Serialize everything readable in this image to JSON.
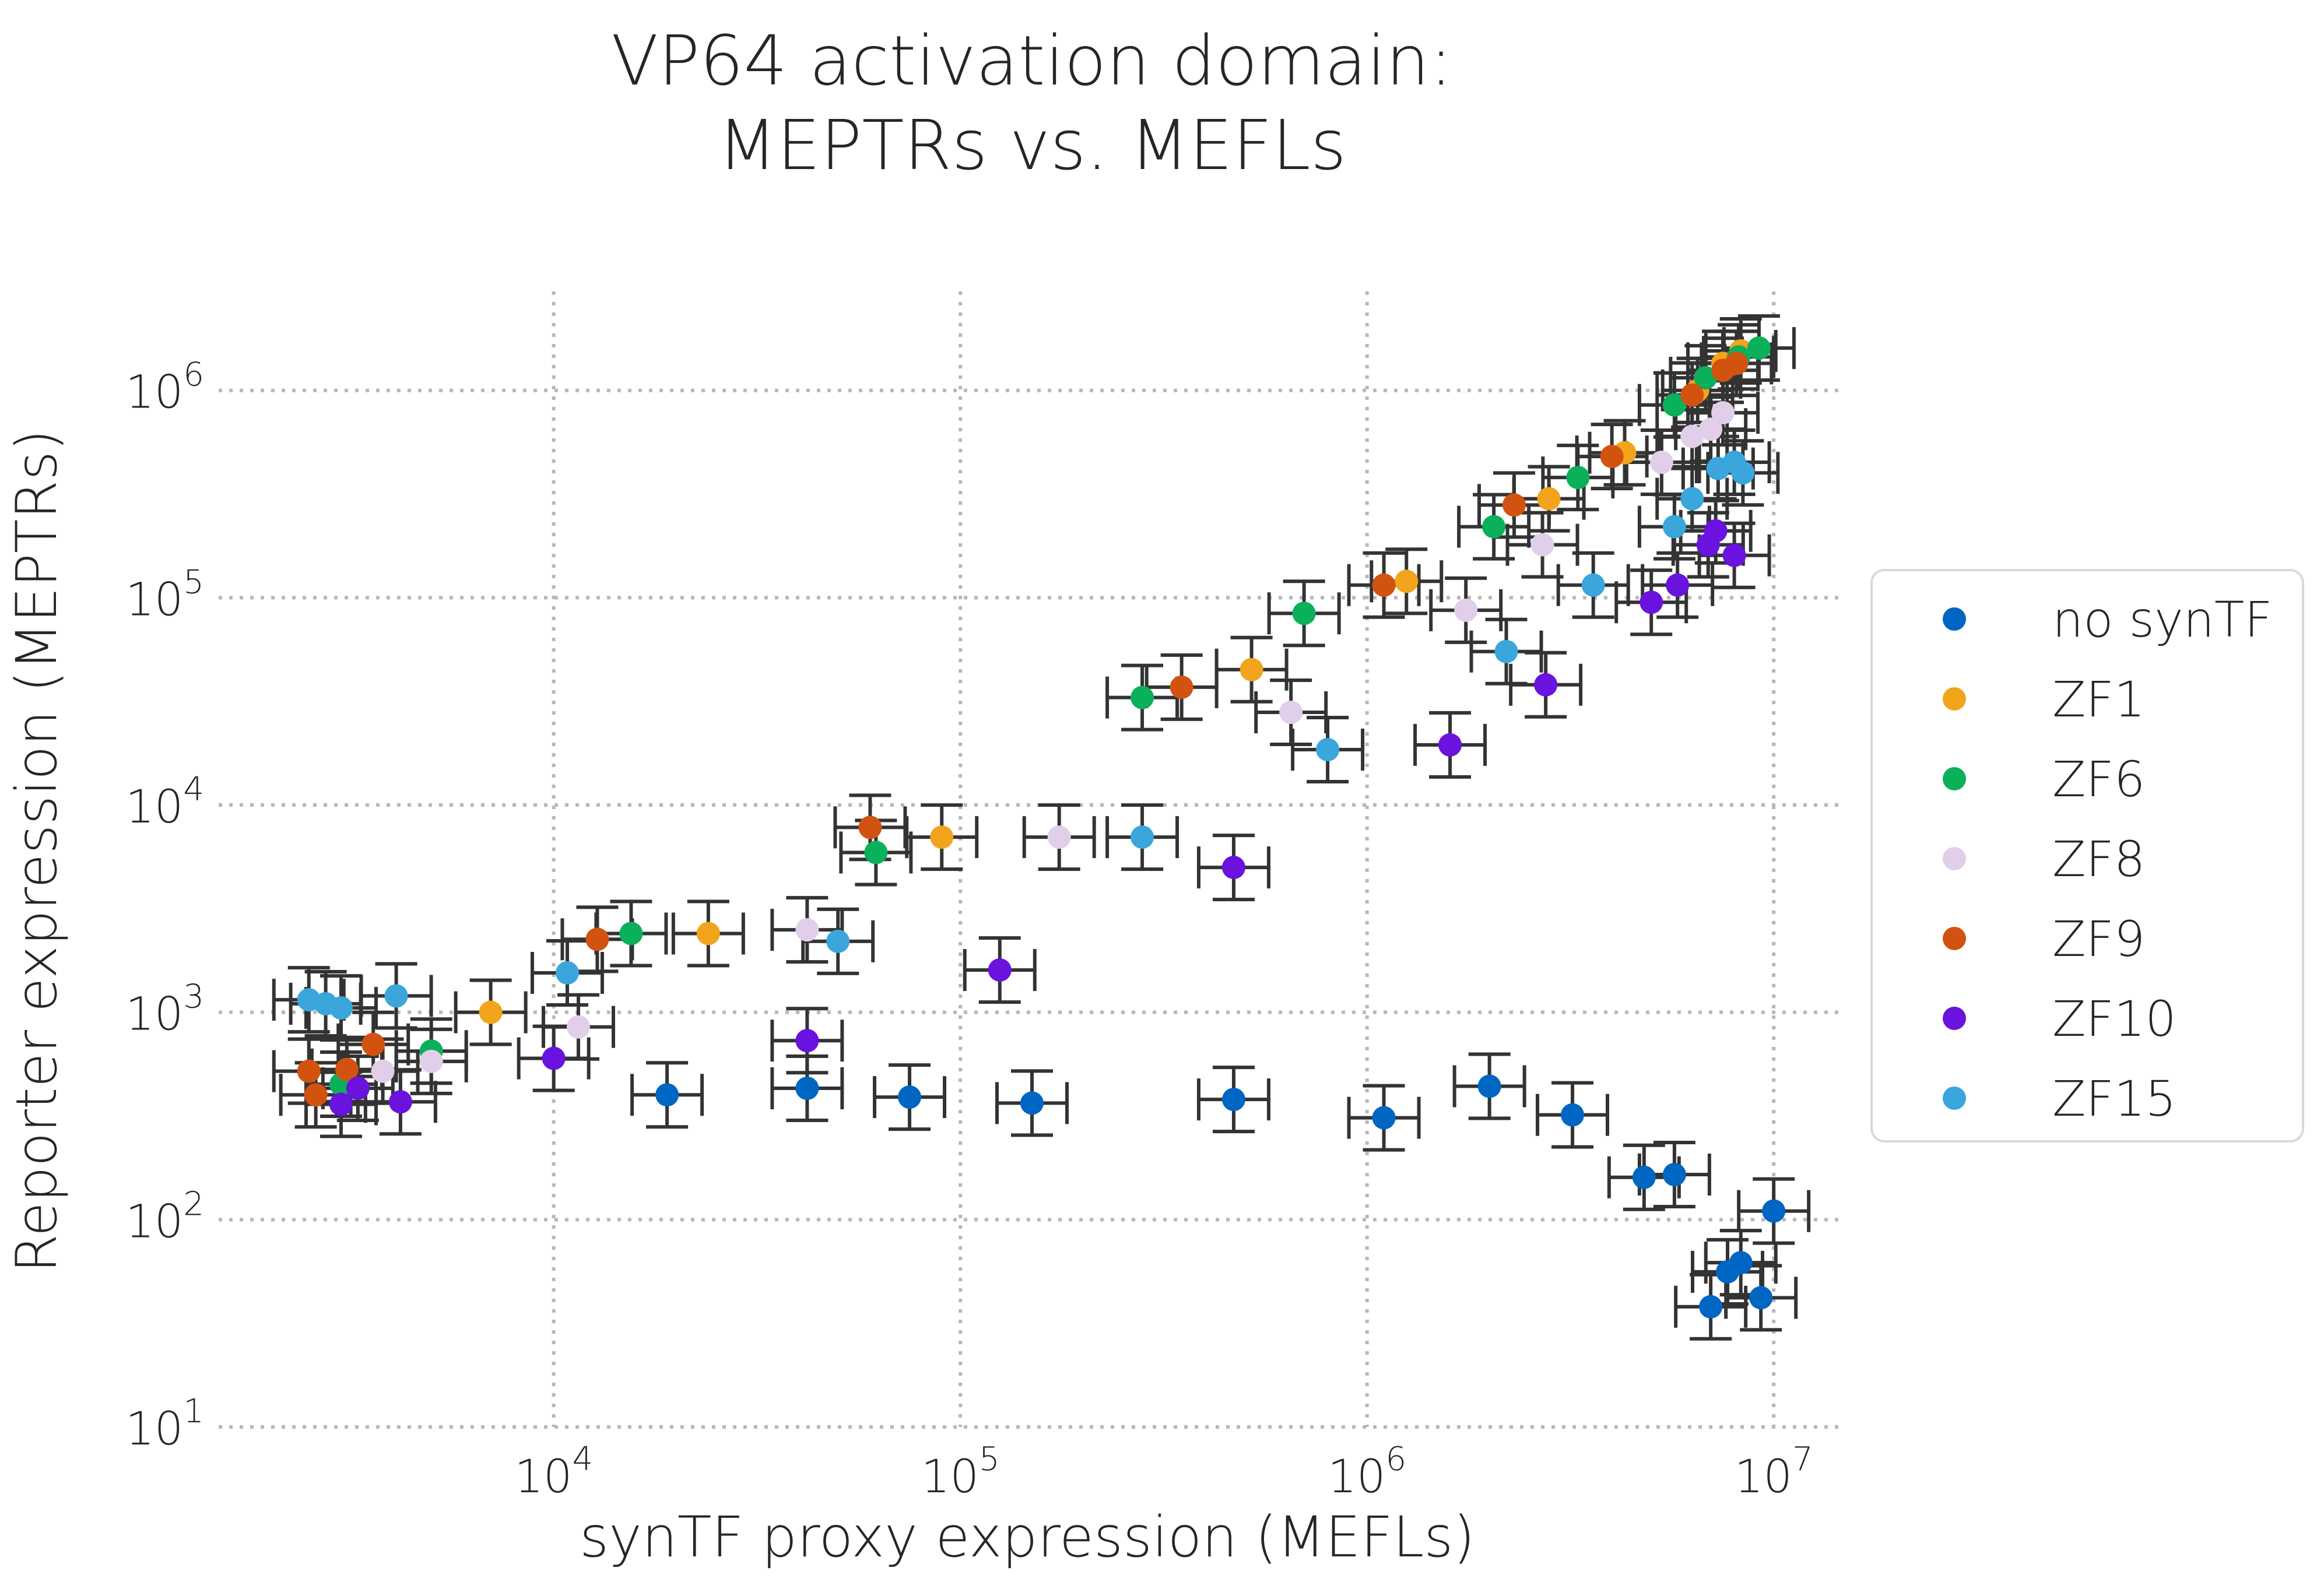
{
  "chart_data": {
    "type": "scatter",
    "title_lines": [
      "VP64 activation domain:",
      "MEPTRs vs. MEFLs"
    ],
    "xlabel": "synTF proxy expression (MEFLs)",
    "ylabel": "Reporter expression (MEPTRs)",
    "x_scale": "log",
    "y_scale": "log",
    "xlim": [
      1500,
      15000000
    ],
    "ylim": [
      10,
      3000000
    ],
    "x_ticks": [
      {
        "value": 10000,
        "base": "10",
        "exp": "4"
      },
      {
        "value": 100000,
        "base": "10",
        "exp": "5"
      },
      {
        "value": 1000000,
        "base": "10",
        "exp": "6"
      },
      {
        "value": 10000000,
        "base": "10",
        "exp": "7"
      }
    ],
    "y_ticks": [
      {
        "value": 10,
        "base": "10",
        "exp": "1"
      },
      {
        "value": 100,
        "base": "10",
        "exp": "2"
      },
      {
        "value": 1000,
        "base": "10",
        "exp": "3"
      },
      {
        "value": 10000,
        "base": "10",
        "exp": "4"
      },
      {
        "value": 100000,
        "base": "10",
        "exp": "5"
      },
      {
        "value": 1000000,
        "base": "10",
        "exp": "6"
      }
    ],
    "grid": true,
    "error_bars": true,
    "legend_position": "right",
    "series": [
      {
        "name": "no synTF",
        "color": "#0066c4",
        "points": [
          [
            19000,
            400
          ],
          [
            42000,
            430
          ],
          [
            75000,
            390
          ],
          [
            150000,
            365
          ],
          [
            470000,
            380
          ],
          [
            1100000,
            310
          ],
          [
            2000000,
            440
          ],
          [
            3200000,
            320
          ],
          [
            4800000,
            160
          ],
          [
            5700000,
            165
          ],
          [
            7000000,
            38
          ],
          [
            7700000,
            56
          ],
          [
            8300000,
            62
          ],
          [
            9300000,
            42
          ],
          [
            10000000,
            110
          ]
        ]
      },
      {
        "name": "ZF1",
        "color": "#f2a41c",
        "points": [
          [
            7000,
            1000
          ],
          [
            24000,
            2400
          ],
          [
            90000,
            7000
          ],
          [
            520000,
            45000
          ],
          [
            1250000,
            120000
          ],
          [
            2800000,
            300000
          ],
          [
            4300000,
            500000
          ],
          [
            6500000,
            1000000
          ],
          [
            7500000,
            1350000
          ],
          [
            8300000,
            1550000
          ]
        ]
      },
      {
        "name": "ZF6",
        "color": "#0bb05a",
        "points": [
          [
            3000,
            450
          ],
          [
            5000,
            650
          ],
          [
            15500,
            2400
          ],
          [
            62000,
            5900
          ],
          [
            280000,
            33000
          ],
          [
            700000,
            84000
          ],
          [
            2050000,
            220000
          ],
          [
            3300000,
            380000
          ],
          [
            5700000,
            850000
          ],
          [
            6800000,
            1150000
          ],
          [
            8200000,
            1450000
          ],
          [
            9200000,
            1600000
          ]
        ]
      },
      {
        "name": "ZF8",
        "color": "#e1cfea",
        "points": [
          [
            3800,
            520
          ],
          [
            5000,
            580
          ],
          [
            11500,
            850
          ],
          [
            42000,
            2500
          ],
          [
            175000,
            7000
          ],
          [
            650000,
            28000
          ],
          [
            1750000,
            87000
          ],
          [
            2700000,
            180000
          ],
          [
            5300000,
            450000
          ],
          [
            6300000,
            600000
          ],
          [
            7000000,
            650000
          ],
          [
            7500000,
            780000
          ]
        ]
      },
      {
        "name": "ZF9",
        "color": "#d2530f",
        "points": [
          [
            2500,
            520
          ],
          [
            2600,
            400
          ],
          [
            3100,
            530
          ],
          [
            3600,
            700
          ],
          [
            12800,
            2250
          ],
          [
            60000,
            7800
          ],
          [
            350000,
            37000
          ],
          [
            1100000,
            115000
          ],
          [
            2300000,
            280000
          ],
          [
            4000000,
            480000
          ],
          [
            6300000,
            950000
          ],
          [
            7500000,
            1250000
          ],
          [
            8100000,
            1350000
          ]
        ]
      },
      {
        "name": "ZF10",
        "color": "#6a12de",
        "points": [
          [
            3000,
            360
          ],
          [
            3300,
            430
          ],
          [
            4200,
            370
          ],
          [
            10000,
            600
          ],
          [
            42000,
            730
          ],
          [
            125000,
            1600
          ],
          [
            470000,
            5000
          ],
          [
            1600000,
            19500
          ],
          [
            2750000,
            38000
          ],
          [
            5000000,
            95000
          ],
          [
            5800000,
            115000
          ],
          [
            6900000,
            180000
          ],
          [
            7200000,
            210000
          ],
          [
            8000000,
            160000
          ]
        ]
      },
      {
        "name": "ZF15",
        "color": "#3aa6dc",
        "points": [
          [
            2500,
            1150
          ],
          [
            2750,
            1100
          ],
          [
            3000,
            1050
          ],
          [
            4100,
            1200
          ],
          [
            10800,
            1550
          ],
          [
            50000,
            2200
          ],
          [
            280000,
            7000
          ],
          [
            800000,
            18500
          ],
          [
            2200000,
            55000
          ],
          [
            3600000,
            115000
          ],
          [
            5700000,
            220000
          ],
          [
            6300000,
            300000
          ],
          [
            7300000,
            420000
          ],
          [
            8000000,
            450000
          ],
          [
            8400000,
            400000
          ]
        ]
      }
    ]
  }
}
